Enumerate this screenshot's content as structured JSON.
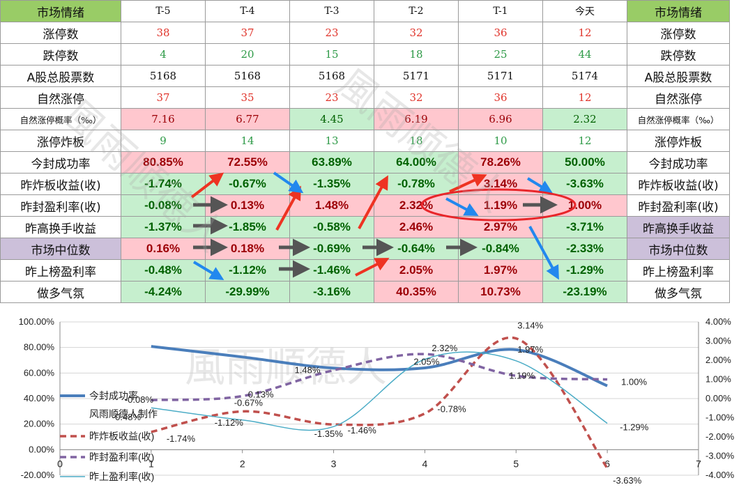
{
  "table": {
    "header_label": "市场情绪",
    "columns": [
      "T-5",
      "T-4",
      "T-3",
      "T-2",
      "T-1",
      "今天"
    ],
    "rows": [
      {
        "label": "涨停数",
        "values": [
          "38",
          "37",
          "23",
          "32",
          "36",
          "12"
        ]
      },
      {
        "label": "跌停数",
        "values": [
          "4",
          "20",
          "15",
          "18",
          "25",
          "44"
        ]
      },
      {
        "label": "A股总股票数",
        "values": [
          "5168",
          "5168",
          "5168",
          "5171",
          "5171",
          "5174"
        ]
      },
      {
        "label": "自然涨停",
        "values": [
          "37",
          "35",
          "23",
          "32",
          "36",
          "12"
        ]
      },
      {
        "label": "自然涨停概率（‰）",
        "values": [
          "7.16",
          "6.77",
          "4.45",
          "6.19",
          "6.96",
          "2.32"
        ]
      },
      {
        "label": "涨停炸板",
        "values": [
          "9",
          "14",
          "13",
          "18",
          "10",
          "12"
        ]
      },
      {
        "label": "今封成功率",
        "values": [
          "80.85%",
          "72.55%",
          "63.89%",
          "64.00%",
          "78.26%",
          "50.00%"
        ]
      },
      {
        "label": "昨炸板收益(收)",
        "values": [
          "-1.74%",
          "-0.67%",
          "-1.35%",
          "-0.78%",
          "3.14%",
          "-3.63%"
        ]
      },
      {
        "label": "昨封盈利率(收)",
        "values": [
          "-0.08%",
          "0.13%",
          "1.48%",
          "2.32%",
          "1.19%",
          "1.00%"
        ]
      },
      {
        "label": "昨高换手收益",
        "values": [
          "-1.37%",
          "-1.85%",
          "-0.58%",
          "2.46%",
          "2.97%",
          "-3.71%"
        ]
      },
      {
        "label": "市场中位数",
        "values": [
          "0.16%",
          "0.18%",
          "-0.69%",
          "-0.64%",
          "-0.84%",
          "-2.33%"
        ]
      },
      {
        "label": "昨上榜盈利率",
        "values": [
          "-0.48%",
          "-1.12%",
          "-1.46%",
          "2.05%",
          "1.97%",
          "-1.29%"
        ]
      },
      {
        "label": "做多气氛",
        "values": [
          "-4.24%",
          "-29.99%",
          "-3.16%",
          "40.35%",
          "10.73%",
          "-23.19%"
        ]
      }
    ]
  },
  "watermark": "風雨顺德人",
  "chart_data": {
    "type": "line",
    "x": [
      1,
      2,
      3,
      4,
      5,
      6
    ],
    "xlim": [
      0,
      7
    ],
    "xticks": [
      "0",
      "1",
      "2",
      "3",
      "4",
      "5",
      "6",
      "7"
    ],
    "y_left_ticks": [
      "100.00%",
      "80.00%",
      "60.00%",
      "40.00%",
      "20.00%",
      "0.00%",
      "-20.00%"
    ],
    "y_left_lim": [
      -20,
      100
    ],
    "y_right_ticks": [
      "4.00%",
      "3.00%",
      "2.00%",
      "1.00%",
      "0.00%",
      "-1.00%",
      "-2.00%",
      "-3.00%",
      "-4.00%"
    ],
    "y_right_lim": [
      -4,
      4
    ],
    "series": [
      {
        "name": "今封成功率",
        "axis": "left",
        "values": [
          80.85,
          72.55,
          63.89,
          64.0,
          78.26,
          50.0
        ],
        "color": "#4a7ebb",
        "style": "solid-thick",
        "labels": []
      },
      {
        "name": "昨炸板收益(收)",
        "axis": "right",
        "values": [
          -1.74,
          -0.67,
          -1.35,
          -0.78,
          3.14,
          -3.63
        ],
        "color": "#c0504d",
        "style": "dashed",
        "labels": [
          "-1.74%",
          "-0.67%",
          "-1.35%",
          "-0.78%",
          "3.14%",
          "-3.63%"
        ]
      },
      {
        "name": "昨封盈利率(收)",
        "axis": "right",
        "values": [
          -0.08,
          0.13,
          1.48,
          2.32,
          1.19,
          1.0
        ],
        "color": "#8064a2",
        "style": "dashed",
        "labels": [
          "-0.08%",
          "0.13%",
          "1.48%",
          "2.32%",
          "1.19%",
          "1.00%"
        ]
      },
      {
        "name": "昨上盈利率(收)",
        "axis": "right",
        "values": [
          -0.48,
          -1.12,
          -1.46,
          2.05,
          1.97,
          -1.29
        ],
        "color": "#4bacc6",
        "style": "thin",
        "labels": [
          "-0.48%",
          "-1.12%",
          "-1.46%",
          "2.05%",
          "1.97%",
          "-1.29%"
        ]
      }
    ],
    "legend_note": "风雨顺德人制作",
    "legend_position": "left-bottom"
  },
  "colors": {
    "pink": "#ffc7ce",
    "green": "#c6efce",
    "header_green": "#99cc66",
    "lavender": "#ccc0da"
  }
}
